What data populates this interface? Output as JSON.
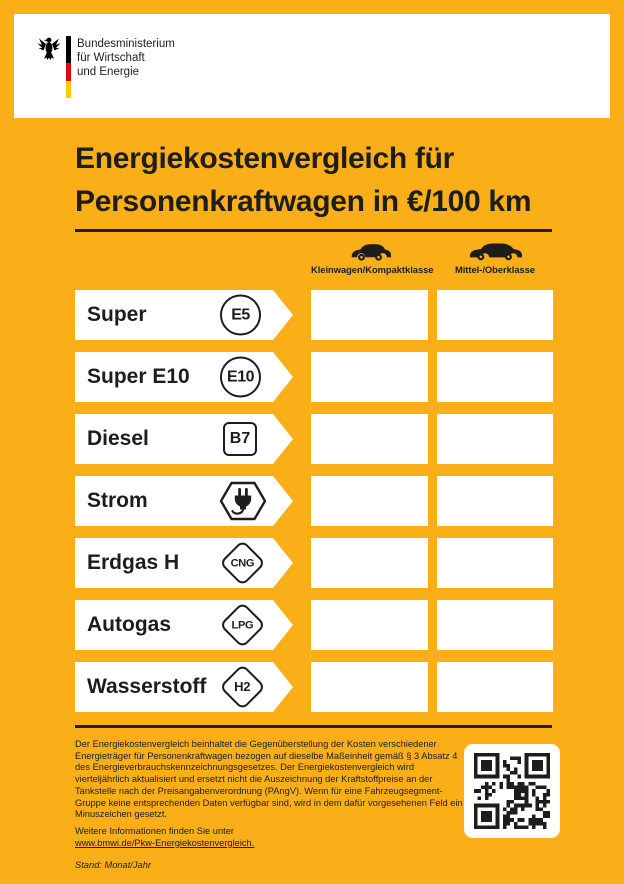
{
  "header": {
    "ministry_lines": [
      "Bundesministerium",
      "für Wirtschaft",
      "und Energie"
    ]
  },
  "title": {
    "line1": "Energiekostenvergleich für",
    "line2": "Personenkraftwagen in €/100 km"
  },
  "columns": [
    {
      "label": "Kleinwagen/Kompaktklasse",
      "icon": "compact-car-icon"
    },
    {
      "label": "Mittel-/Oberklasse",
      "icon": "sedan-car-icon"
    }
  ],
  "fuels": [
    {
      "name": "Super",
      "badge": "E5",
      "badge_shape": "circle",
      "kleinwagen": "",
      "mittel": ""
    },
    {
      "name": "Super E10",
      "badge": "E10",
      "badge_shape": "circle",
      "kleinwagen": "",
      "mittel": ""
    },
    {
      "name": "Diesel",
      "badge": "B7",
      "badge_shape": "square",
      "kleinwagen": "",
      "mittel": ""
    },
    {
      "name": "Strom",
      "badge": "",
      "badge_shape": "hexagon",
      "badge_icon": "plug-icon",
      "kleinwagen": "",
      "mittel": ""
    },
    {
      "name": "Erdgas H",
      "badge": "CNG",
      "badge_shape": "diamond",
      "kleinwagen": "",
      "mittel": ""
    },
    {
      "name": "Autogas",
      "badge": "LPG",
      "badge_shape": "diamond",
      "kleinwagen": "",
      "mittel": ""
    },
    {
      "name": "Wasserstoff",
      "badge": "H2",
      "badge_shape": "diamond",
      "kleinwagen": "",
      "mittel": ""
    }
  ],
  "footer": {
    "paragraph": "Der Energiekostenvergleich beinhaltet die Gegenüberstellung der Kosten verschiedener Energieträger für Personenkraftwagen bezogen auf dieselbe Maßeinheit gemäß § 3 Absatz 4 des Energieverbrauchskennzeichnungsgesetzes. Der Energiekostenvergleich wird vierteljährlich aktualisiert und ersetzt nicht die Auszeichnung der Kraftstoffpreise an der Tankstelle nach der Preisangabenverordnung (PAngV). Wenn für eine Fahrzeugsegment-Gruppe keine entsprechenden Daten verfügbar sind, wird in dem dafür vorgesehenen Feld ein Minuszeichen gesetzt.",
    "more_info": "Weitere Informationen finden Sie unter",
    "url": "www.bmwi.de/Pkw-Energiekostenvergleich.",
    "stand": "Stand: Monat/Jahr"
  },
  "colors": {
    "background_orange": "#FAAF19",
    "text_black": "#1D1D1B",
    "flag_black": "#000000",
    "flag_red": "#E30613",
    "flag_gold": "#FFCC00",
    "box_white": "#FFFFFF"
  }
}
